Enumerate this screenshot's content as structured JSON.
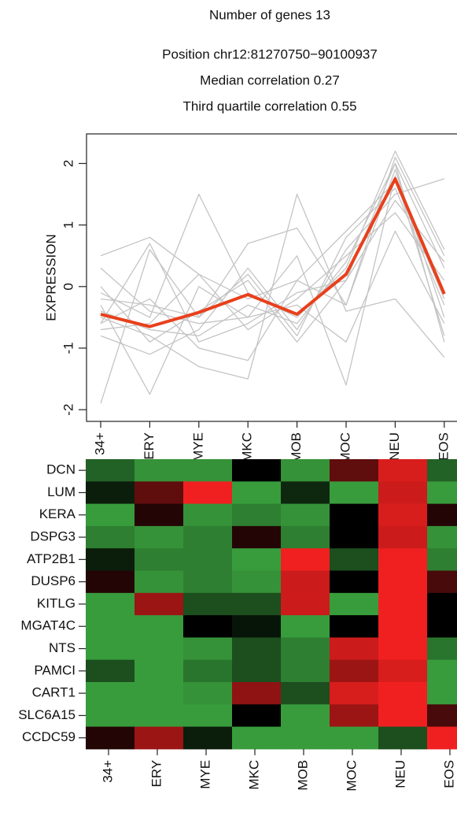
{
  "chart_data": [
    {
      "type": "line",
      "title_lines": [
        "Number of genes 13",
        "Position chr12:81270750−90100937",
        "Median correlation 0.27",
        "Third quartile correlation 0.55"
      ],
      "ylabel": "EXPRESSION",
      "categories": [
        "34+",
        "ERY",
        "MYE",
        "MKC",
        "MOB",
        "MOC",
        "NEU",
        "EOS"
      ],
      "ylim": [
        -2.19,
        2.48
      ],
      "yticks": [
        -2,
        -1,
        0,
        1,
        2
      ],
      "series": [
        {
          "color": "#c4c4c4",
          "values": [
            0.5,
            0.8,
            0.2,
            -0.2,
            0.1,
            -0.3,
            1.9,
            -0.5
          ]
        },
        {
          "color": "#c4c4c4",
          "values": [
            -0.1,
            -0.5,
            1.5,
            -0.1,
            -0.5,
            0.3,
            2.2,
            0.6
          ]
        },
        {
          "color": "#c4c4c4",
          "values": [
            -1.9,
            0.6,
            -0.5,
            0.7,
            0.95,
            -0.3,
            2.1,
            0.5
          ]
        },
        {
          "color": "#c4c4c4",
          "values": [
            -0.3,
            -1.75,
            0,
            -0.5,
            0.5,
            -1.6,
            1.8,
            -0.8
          ]
        },
        {
          "color": "#c4c4c4",
          "values": [
            -0.6,
            0.7,
            -0.9,
            -0.6,
            -0.1,
            0.1,
            2.0,
            0.3
          ]
        },
        {
          "color": "#c4c4c4",
          "values": [
            -0.8,
            -1.1,
            -0.7,
            0.3,
            -0.7,
            0.6,
            1.5,
            1.75
          ]
        },
        {
          "color": "#c4c4c4",
          "values": [
            -0.5,
            -0.8,
            -1.3,
            -1.5,
            1.5,
            -0.4,
            -0.2,
            -1.15
          ]
        },
        {
          "color": "#c4c4c4",
          "values": [
            0.3,
            -0.4,
            -0.6,
            -0.5,
            -0.3,
            -0.9,
            0.9,
            -0.6
          ]
        },
        {
          "color": "#c4c4c4",
          "values": [
            -0.2,
            -0.3,
            -0.5,
            0.2,
            -0.8,
            0.8,
            1.6,
            -0.3
          ]
        },
        {
          "color": "#c4c4c4",
          "values": [
            -0.7,
            -0.6,
            0.2,
            -0.7,
            -0.2,
            0.5,
            1.2,
            0.1
          ]
        },
        {
          "color": "#c4c4c4",
          "values": [
            -0.4,
            -0.7,
            -0.8,
            -0.3,
            -0.6,
            0.4,
            2.0,
            -0.9
          ]
        },
        {
          "color": "#c4c4c4",
          "values": [
            0.0,
            -0.9,
            -0.4,
            0.1,
            -0.9,
            0.1,
            1.4,
            0.4
          ]
        },
        {
          "color": "#c4c4c4",
          "values": [
            -0.6,
            -0.2,
            -1.0,
            -1.2,
            0.1,
            0.9,
            1.7,
            -0.2
          ]
        },
        {
          "color": "#e8401c",
          "width": 4,
          "values": [
            -0.45,
            -0.65,
            -0.42,
            -0.13,
            -0.45,
            0.2,
            1.75,
            -0.12
          ]
        }
      ]
    },
    {
      "type": "heatmap",
      "rows": [
        "DCN",
        "LUM",
        "KERA",
        "DSPG3",
        "ATP2B1",
        "DUSP6",
        "KITLG",
        "MGAT4C",
        "NTS",
        "PAMCI",
        "CART1",
        "SLC6A15",
        "CCDC59"
      ],
      "columns": [
        "34+",
        "ERY",
        "MYE",
        "MKC",
        "MOB",
        "MOC",
        "NEU",
        "EOS"
      ],
      "color_range": [
        -2,
        2
      ],
      "low_color": [
        70,
        195,
        75
      ],
      "mid_color": [
        0,
        0,
        0
      ],
      "high_color": [
        240,
        32,
        32
      ],
      "values": [
        [
          -1,
          -1.5,
          -1.5,
          0,
          -1.5,
          0.8,
          1.8,
          -1
        ],
        [
          -0.3,
          0.8,
          2,
          -1.6,
          -0.4,
          -1.6,
          1.7,
          -1.6
        ],
        [
          -1.6,
          0.3,
          -1.5,
          -1.3,
          -1.5,
          0,
          1.8,
          0.3
        ],
        [
          -1.3,
          -1.5,
          -1.3,
          0.3,
          -1.3,
          0,
          1.7,
          -1.5
        ],
        [
          -0.3,
          -1.3,
          -1.3,
          -1.6,
          2,
          -0.8,
          2,
          -1.3
        ],
        [
          0.3,
          -1.5,
          -1.3,
          -1.5,
          1.7,
          0,
          2,
          0.6
        ],
        [
          -1.6,
          1.3,
          -0.8,
          -0.8,
          1.7,
          -1.6,
          2,
          0
        ],
        [
          -1.6,
          -1.6,
          0,
          -0.2,
          -1.6,
          0,
          2,
          0
        ],
        [
          -1.6,
          -1.6,
          -1.5,
          -0.8,
          -1.3,
          1.7,
          2,
          -1.2
        ],
        [
          -0.8,
          -1.6,
          -1.2,
          -0.8,
          -1.3,
          1.3,
          1.8,
          -1.6
        ],
        [
          -1.6,
          -1.6,
          -1.5,
          1.2,
          -0.8,
          1.8,
          2,
          -1.6
        ],
        [
          -1.6,
          -1.6,
          -1.6,
          0,
          -1.6,
          1.3,
          2,
          0.6
        ],
        [
          0.3,
          1.3,
          -0.3,
          -1.6,
          -1.6,
          -1.6,
          -0.8,
          2
        ]
      ]
    }
  ]
}
